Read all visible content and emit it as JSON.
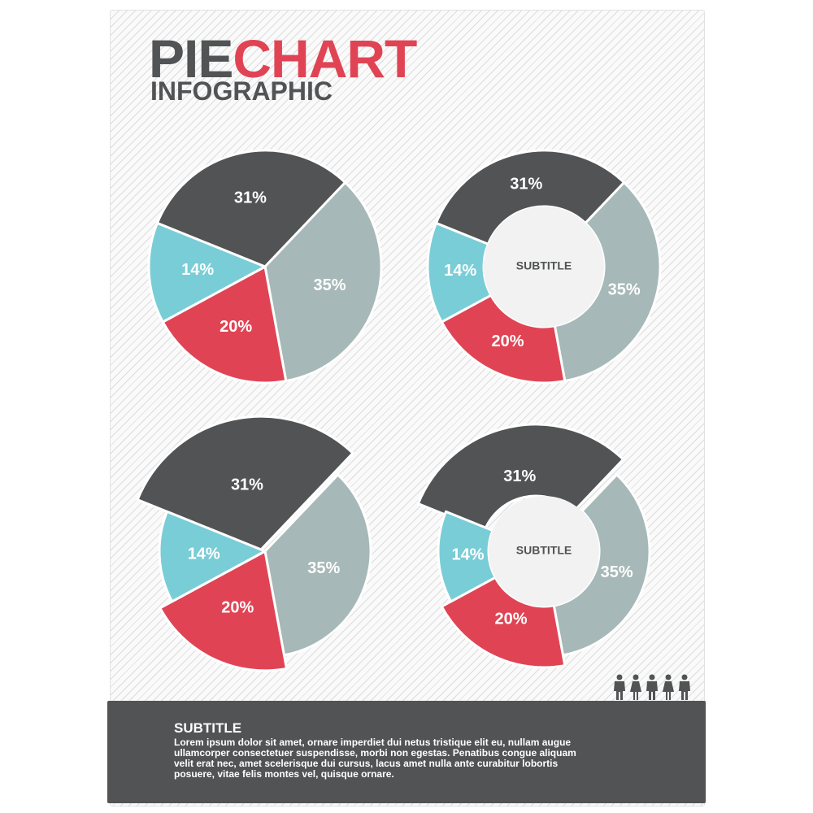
{
  "header": {
    "title_part1": "PIE",
    "title_part2": "CHART",
    "subtitle": "INFOGRAPHIC"
  },
  "colors": {
    "dark": "#515354",
    "red": "#e04454",
    "cyan": "#79cdd6",
    "grey": "#a6b8b7",
    "hole": "#f2f2f2",
    "accent": "#e04454"
  },
  "chart_data": [
    {
      "type": "pie",
      "variant": "pie",
      "categories": [
        "",
        "",
        "",
        ""
      ],
      "values": [
        31,
        35,
        20,
        14
      ],
      "labels": [
        "31%",
        "35%",
        "20%",
        "14%"
      ],
      "title": "",
      "center_label": ""
    },
    {
      "type": "pie",
      "variant": "donut",
      "categories": [
        "",
        "",
        "",
        ""
      ],
      "values": [
        31,
        35,
        20,
        14
      ],
      "labels": [
        "31%",
        "35%",
        "20%",
        "14%"
      ],
      "title": "",
      "center_label": "SUBTITLE"
    },
    {
      "type": "pie",
      "variant": "exploded-pie",
      "categories": [
        "",
        "",
        "",
        ""
      ],
      "values": [
        31,
        35,
        20,
        14
      ],
      "labels": [
        "31%",
        "35%",
        "20%",
        "14%"
      ],
      "title": "",
      "center_label": ""
    },
    {
      "type": "pie",
      "variant": "exploded-donut",
      "categories": [
        "",
        "",
        "",
        ""
      ],
      "values": [
        31,
        35,
        20,
        14
      ],
      "labels": [
        "31%",
        "35%",
        "20%",
        "14%"
      ],
      "title": "",
      "center_label": "SUBTITLE"
    }
  ],
  "people_icons": [
    "man-icon",
    "woman-icon",
    "man-icon",
    "woman-icon",
    "man-icon"
  ],
  "footer": {
    "title": "SUBTITLE",
    "body": "Lorem ipsum dolor sit amet, ornare imperdiet dui netus tristique elit eu, nullam augue ullamcorper consectetuer suspendisse, morbi non egestas. Penatibus congue aliquam velit erat nec, amet scelerisque dui cursus, lacus amet nulla ante curabitur lobortis posuere, vitae felis montes vel, quisque ornare."
  }
}
